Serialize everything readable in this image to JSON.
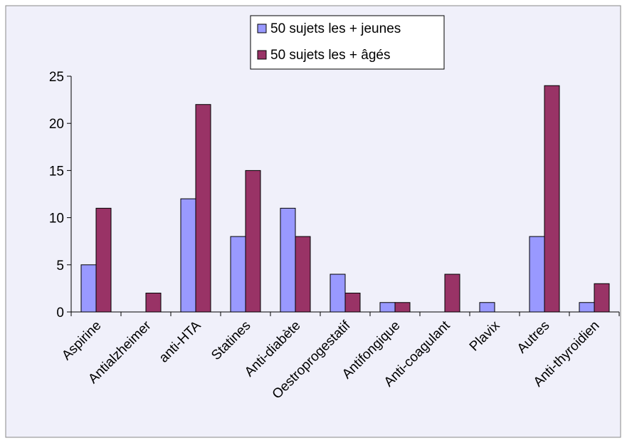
{
  "chart_data": {
    "type": "bar",
    "categories": [
      "Aspirine",
      "Antialzheimer",
      "anti-HTA",
      "Statines",
      "Anti-diabète",
      "Oestroprogestatif",
      "Antifongique",
      "Anti-coagulant",
      "Plavix",
      "Autres",
      "Anti-thyroidien"
    ],
    "series": [
      {
        "name": "50 sujets les + jeunes",
        "color": "#9999ff",
        "values": [
          5,
          0,
          12,
          8,
          11,
          4,
          1,
          0,
          1,
          8,
          1
        ]
      },
      {
        "name": "50 sujets les + âgés",
        "color": "#993366",
        "values": [
          11,
          2,
          22,
          15,
          8,
          2,
          1,
          4,
          0,
          24,
          3
        ]
      }
    ],
    "ylim": [
      0,
      25
    ],
    "yticks": [
      0,
      5,
      10,
      15,
      20,
      25
    ],
    "grid": false,
    "legend": "top"
  }
}
